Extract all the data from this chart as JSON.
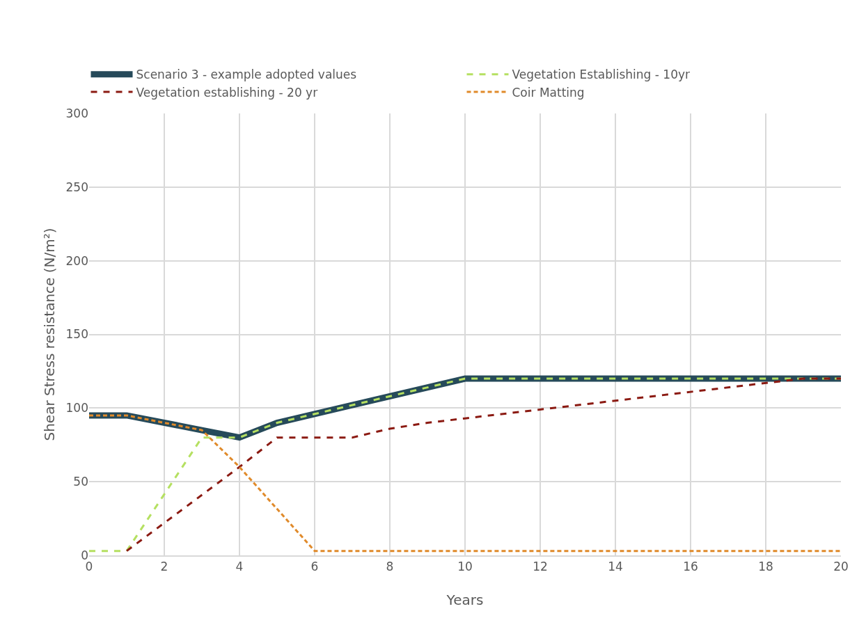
{
  "chart_data": {
    "type": "line",
    "xlabel": "Years",
    "ylabel": "Shear Stress resistance (N/m²)",
    "xlim": [
      0,
      20
    ],
    "xticks": [
      0,
      2,
      4,
      6,
      8,
      10,
      12,
      14,
      16,
      18,
      20
    ],
    "ylim": [
      0,
      300
    ],
    "yticks": [
      0,
      50,
      100,
      150,
      200,
      250,
      300
    ],
    "grid": true,
    "legend": "top",
    "marker": "none",
    "series": [
      {
        "name": "Scenario 3 - example adopted values",
        "color": "#264a5a",
        "line_style": "solid",
        "x": [
          0,
          1,
          3,
          4,
          5,
          10,
          20
        ],
        "values": [
          95,
          95,
          85,
          80,
          90,
          120,
          120
        ]
      },
      {
        "name": "Vegetation Establishing - 10yr",
        "color": "#b5e061",
        "line_style": "dashed",
        "x": [
          0,
          1,
          3,
          4,
          5,
          10,
          20
        ],
        "values": [
          3,
          3,
          80,
          80,
          90,
          120,
          120
        ]
      },
      {
        "name": "Vegetation establishing - 20 yr",
        "color": "#8b1a12",
        "line_style": "dashed",
        "x": [
          1,
          4,
          5,
          7,
          8,
          9,
          10,
          19,
          20
        ],
        "values": [
          3,
          60,
          80,
          80,
          86,
          90,
          93,
          120,
          120
        ]
      },
      {
        "name": "Coir Matting",
        "color": "#e08a2a",
        "line_style": "dotted",
        "x": [
          0,
          1,
          3,
          4,
          6,
          20
        ],
        "values": [
          95,
          95,
          85,
          60,
          3,
          3
        ]
      }
    ]
  }
}
